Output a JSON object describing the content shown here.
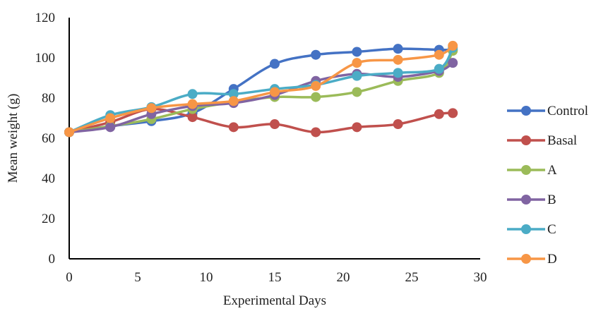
{
  "chart_data": {
    "type": "line",
    "title": "",
    "xlabel": "Experimental Days",
    "ylabel": "Mean weight (g)",
    "xlim": [
      0,
      30
    ],
    "ylim": [
      0,
      120
    ],
    "xticks": [
      0,
      5,
      10,
      15,
      20,
      25,
      30
    ],
    "yticks": [
      0,
      20,
      40,
      60,
      80,
      100,
      120
    ],
    "grid": false,
    "legend_position": "right",
    "x": [
      0,
      3,
      6,
      9,
      12,
      15,
      18,
      21,
      24,
      27,
      28
    ],
    "series": [
      {
        "name": "Control",
        "color": "#4472C4",
        "values": [
          63,
          66,
          68.5,
          72.5,
          84.5,
          97,
          101.5,
          103,
          104.5,
          104,
          104
        ]
      },
      {
        "name": "Basal",
        "color": "#C0504D",
        "values": [
          63,
          68,
          74.5,
          70.5,
          65.5,
          67,
          63,
          65.5,
          67,
          72,
          72.5
        ]
      },
      {
        "name": "A",
        "color": "#9BBB59",
        "values": [
          63,
          66,
          69.5,
          74.5,
          78,
          80.5,
          80.5,
          83,
          88.5,
          92.5,
          103.5
        ]
      },
      {
        "name": "B",
        "color": "#8064A2",
        "values": [
          63,
          65.5,
          72,
          76,
          77.5,
          81.5,
          88.5,
          92,
          90.5,
          93.5,
          97.5
        ]
      },
      {
        "name": "C",
        "color": "#4BACC6",
        "values": [
          63,
          71.5,
          75.5,
          82,
          82,
          84.5,
          86.5,
          91,
          92.5,
          94.5,
          105
        ]
      },
      {
        "name": "D",
        "color": "#F79646",
        "values": [
          63,
          70,
          75,
          77,
          78.5,
          83,
          86,
          97.5,
          99,
          101.5,
          106
        ]
      }
    ]
  }
}
